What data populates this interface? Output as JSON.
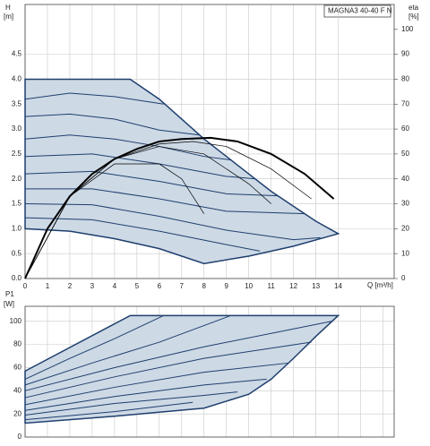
{
  "chart_data": [
    {
      "type": "line",
      "title": "MAGNA3 40-40 F N",
      "ylabel": "H",
      "yunit": "[m]",
      "y2label": "eta",
      "y2unit": "[%]",
      "xlabel": "Q [m³/h]",
      "xlim": [
        0,
        16.5
      ],
      "ylim": [
        0,
        5.5
      ],
      "y2lim": [
        0,
        110
      ],
      "xticks": [
        0,
        1,
        2,
        3,
        4,
        5,
        6,
        7,
        8,
        9,
        10,
        11,
        12,
        13,
        14
      ],
      "yticks": [
        {
          "value": 0,
          "label": "0.0"
        },
        {
          "value": 0.5,
          "label": "0.5"
        },
        {
          "value": 1,
          "label": "1.0"
        },
        {
          "value": 1.5,
          "label": "1.5"
        },
        {
          "value": 2,
          "label": "2.0"
        },
        {
          "value": 2.5,
          "label": "2.5"
        },
        {
          "value": 3,
          "label": "3.0"
        },
        {
          "value": 3.5,
          "label": "3.5"
        },
        {
          "value": 4,
          "label": "4.0"
        },
        {
          "value": 4.5,
          "label": "4.5"
        }
      ],
      "y2ticks": [
        0,
        10,
        20,
        30,
        40,
        50,
        60,
        70,
        80,
        90,
        100
      ],
      "grid": true,
      "area_color": "#cdd9e5",
      "edge_color": "#1f3f6e",
      "area": {
        "x": [
          0,
          4.7,
          6,
          7,
          8,
          9,
          10,
          11,
          12,
          13,
          14,
          12,
          10,
          8,
          6,
          4,
          2,
          0
        ],
        "values": [
          4.0,
          4.0,
          3.6,
          3.2,
          2.8,
          2.45,
          2.1,
          1.75,
          1.45,
          1.15,
          0.9,
          0.65,
          0.45,
          0.3,
          0.6,
          0.8,
          0.95,
          1.0
        ]
      },
      "series": [
        {
          "color": "#1f3f6e",
          "width": 1,
          "x": [
            0,
            2,
            4,
            6.2
          ],
          "values": [
            3.6,
            3.72,
            3.65,
            3.5
          ]
        },
        {
          "color": "#1f3f6e",
          "width": 1,
          "x": [
            0,
            2,
            4,
            6,
            7.8
          ],
          "values": [
            3.25,
            3.3,
            3.2,
            2.98,
            2.88
          ]
        },
        {
          "color": "#1f3f6e",
          "width": 1,
          "x": [
            0,
            2,
            4,
            6,
            8,
            9.2
          ],
          "values": [
            2.8,
            2.88,
            2.8,
            2.65,
            2.45,
            2.38
          ]
        },
        {
          "color": "#1f3f6e",
          "width": 1,
          "x": [
            0,
            3,
            6,
            9,
            10.3
          ],
          "values": [
            2.45,
            2.5,
            2.3,
            2.05,
            2.0
          ]
        },
        {
          "color": "#1f3f6e",
          "width": 1,
          "x": [
            0,
            3,
            6,
            9,
            11.3
          ],
          "values": [
            2.1,
            2.15,
            1.95,
            1.7,
            1.66
          ]
        },
        {
          "color": "#1f3f6e",
          "width": 1,
          "x": [
            0,
            3,
            6,
            9,
            12.5
          ],
          "values": [
            1.8,
            1.8,
            1.6,
            1.35,
            1.3
          ]
        },
        {
          "color": "#1f3f6e",
          "width": 1,
          "x": [
            0,
            3,
            6,
            9,
            12,
            13.2
          ],
          "values": [
            1.5,
            1.48,
            1.25,
            0.97,
            0.78,
            0.82
          ]
        },
        {
          "color": "#1f3f6e",
          "width": 1,
          "x": [
            0,
            3,
            6,
            9,
            10.5
          ],
          "values": [
            1.22,
            1.18,
            0.95,
            0.68,
            0.55
          ]
        },
        {
          "color": "#000000",
          "width": 2,
          "axis": "y2",
          "x": [
            0,
            1,
            2,
            3,
            4,
            5,
            6,
            7,
            8.3,
            9.5,
            11,
            12.5,
            13.8
          ],
          "values": [
            0,
            20,
            33,
            42,
            48,
            52,
            55,
            56,
            56.5,
            55,
            50,
            42,
            32
          ]
        },
        {
          "color": "#000000",
          "width": 0.7,
          "axis": "y2",
          "x": [
            0,
            2,
            4,
            6,
            7.5,
            9,
            11,
            12.8
          ],
          "values": [
            0,
            33,
            48,
            54,
            55,
            53,
            44,
            32
          ]
        },
        {
          "color": "#000000",
          "width": 0.7,
          "axis": "y2",
          "x": [
            0,
            2,
            4,
            6,
            8,
            10,
            11
          ],
          "values": [
            0,
            33,
            48,
            53,
            50,
            38,
            30
          ]
        },
        {
          "color": "#000000",
          "width": 0.7,
          "axis": "y2",
          "x": [
            0,
            2,
            4,
            6,
            7,
            8
          ],
          "values": [
            0,
            33,
            46,
            46,
            40,
            26
          ]
        }
      ]
    },
    {
      "type": "line",
      "ylabel": "P1",
      "yunit": "[W]",
      "xlim": [
        0,
        16.5
      ],
      "ylim": [
        0,
        113
      ],
      "xticks": [
        0,
        1,
        2,
        3,
        4,
        5,
        6,
        7,
        8,
        9,
        10,
        11,
        12,
        13,
        14,
        15,
        16
      ],
      "yticks": [
        0,
        20,
        40,
        60,
        80,
        100
      ],
      "grid": true,
      "area_color": "#cdd9e5",
      "edge_color": "#1f3f6e",
      "area": {
        "x": [
          0,
          4.7,
          14,
          13,
          12,
          11,
          10,
          8,
          4,
          0
        ],
        "values": [
          57,
          105,
          105,
          87,
          68,
          50,
          37,
          25,
          18,
          12
        ]
      },
      "series": [
        {
          "color": "#1f3f6e",
          "width": 1,
          "x": [
            0,
            2,
            4,
            6.2
          ],
          "values": [
            50,
            68,
            85,
            105
          ]
        },
        {
          "color": "#1f3f6e",
          "width": 1,
          "x": [
            0,
            3,
            6,
            9.2
          ],
          "values": [
            45,
            64,
            82,
            105
          ]
        },
        {
          "color": "#1f3f6e",
          "width": 1,
          "x": [
            0,
            4,
            8,
            13.7
          ],
          "values": [
            40,
            60,
            78,
            100
          ]
        },
        {
          "color": "#1f3f6e",
          "width": 1,
          "x": [
            0,
            4,
            8,
            12.8
          ],
          "values": [
            34,
            52,
            68,
            82
          ]
        },
        {
          "color": "#1f3f6e",
          "width": 1,
          "x": [
            0,
            4,
            8,
            11.8
          ],
          "values": [
            28,
            43,
            56,
            64
          ]
        },
        {
          "color": "#1f3f6e",
          "width": 1,
          "x": [
            0,
            4,
            8,
            10.8
          ],
          "values": [
            23,
            35,
            45,
            50
          ]
        },
        {
          "color": "#1f3f6e",
          "width": 1,
          "x": [
            0,
            4,
            8,
            9.5
          ],
          "values": [
            19,
            29,
            36,
            39
          ]
        },
        {
          "color": "#1f3f6e",
          "width": 1,
          "x": [
            0,
            4,
            7.5
          ],
          "values": [
            15,
            22,
            30
          ]
        }
      ]
    }
  ]
}
